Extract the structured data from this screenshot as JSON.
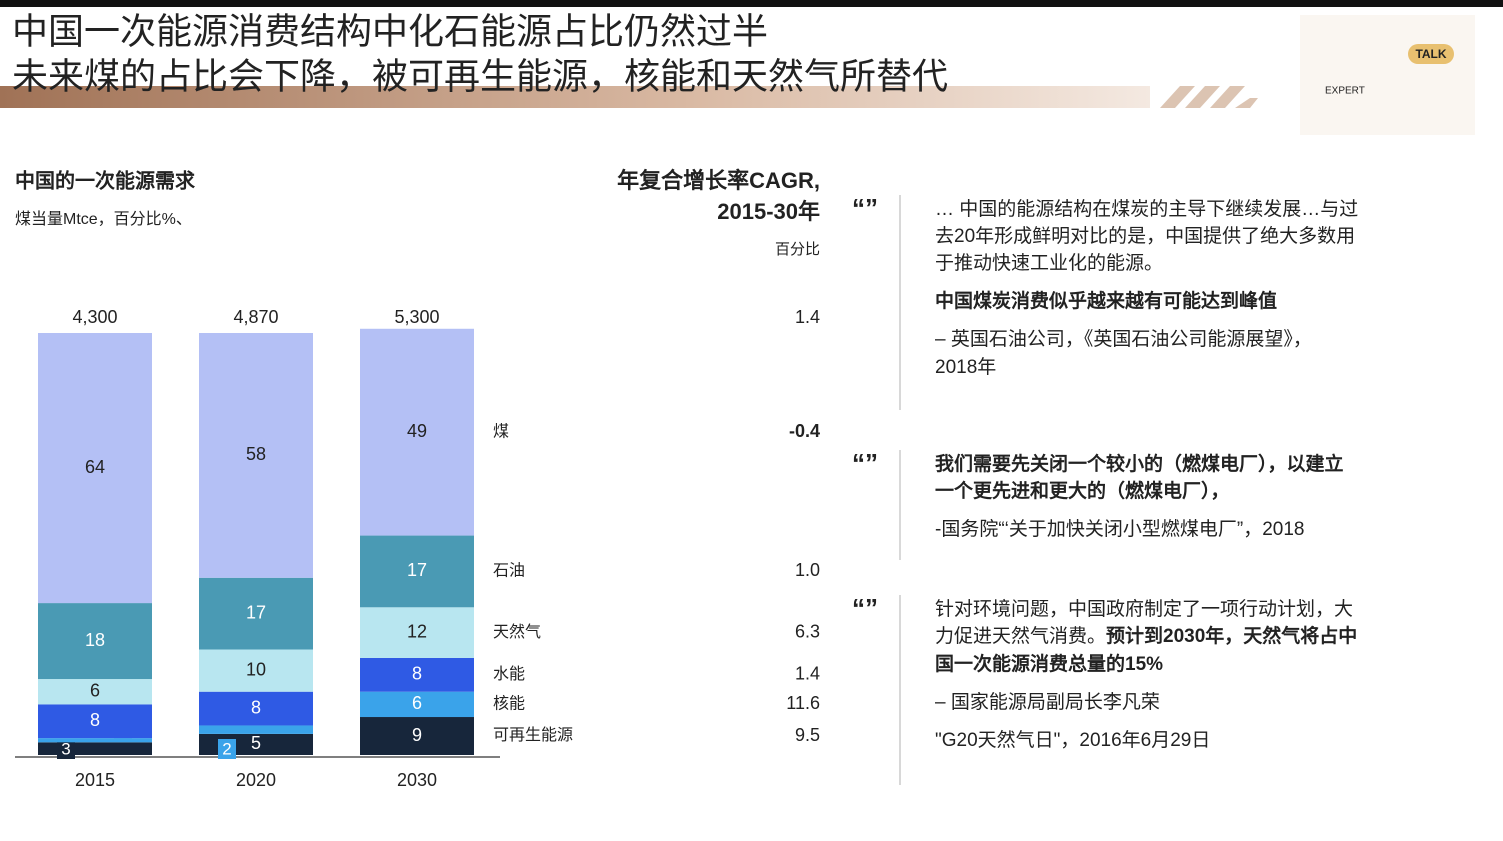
{
  "title": [
    "中国一次能源消费结构中化石能源占比仍然过半",
    "未来煤的占比会下降，被可再生能源，核能和天然气所替代"
  ],
  "logo": [
    "TALK",
    "EXPERT"
  ],
  "chart_data": {
    "type": "stacked-bar",
    "title": "中国的一次能源需求",
    "subtitle": "煤当量Mtce，百分比%、",
    "cagr_title": [
      "年复合增长率CAGR,",
      "2015-30年"
    ],
    "cagr_unit": "百分比",
    "categories": [
      "2015",
      "2020",
      "2030"
    ],
    "totals": {
      "values": [
        4300,
        4870,
        5300
      ],
      "value_labels": [
        "4,300",
        "4,870",
        "5,300"
      ],
      "cagr": 1.4
    },
    "series": [
      {
        "name": "可再生能源",
        "color": "#17263b",
        "values": [
          3,
          5,
          9
        ],
        "cagr": 9.5
      },
      {
        "name": "核能",
        "color": "#3aa3ea",
        "values": [
          1,
          2,
          6
        ],
        "cagr": 11.6
      },
      {
        "name": "水能",
        "color": "#2f5ae4",
        "values": [
          8,
          8,
          8
        ],
        "cagr": 1.4
      },
      {
        "name": "天然气",
        "color": "#b8e6f0",
        "values": [
          6,
          10,
          12
        ],
        "cagr": 6.3
      },
      {
        "name": "石油",
        "color": "#4a9ab4",
        "values": [
          18,
          17,
          17
        ],
        "cagr": 1.0,
        "cagr_label": "1.0"
      },
      {
        "name": "煤",
        "color": "#b4c0f5",
        "values": [
          64,
          58,
          49
        ],
        "cagr": -0.4
      }
    ]
  },
  "quotes": [
    {
      "lines": [
        [
          {
            "text": "… 中国的能源结构在煤炭的主导下继续发展…与过",
            "bold": false
          }
        ],
        [
          {
            "text": "去20年形成鲜明对比的是，中国提供了绝大多数用",
            "bold": false
          }
        ],
        [
          {
            "text": "于推动快速工业化的能源。",
            "bold": false
          }
        ],
        [
          {
            "text": "中国煤炭消费似乎越来越有可能达到峰值",
            "bold": true
          }
        ],
        [
          {
            "text": "– 英国石油公司，《英国石油公司能源展望》，",
            "bold": false
          }
        ],
        [
          {
            "text": "2018年",
            "bold": false
          }
        ]
      ]
    },
    {
      "lines": [
        [
          {
            "text": "我们需要先关闭一个较小的（燃煤电厂），以建立",
            "bold": true
          }
        ],
        [
          {
            "text": "一个更先进和更大的（燃煤电厂），",
            "bold": true
          }
        ],
        [
          {
            "text": "-国务院“‘关于加快关闭小型燃煤电厂”，2018",
            "bold": false
          }
        ]
      ]
    },
    {
      "lines": [
        [
          {
            "text": "针对环境问题，中国政府制定了一项行动计划，大",
            "bold": false
          }
        ],
        [
          {
            "text": "力促进天然气消费。",
            "bold": false
          },
          {
            "text": "预计到2030年，天然气将占中",
            "bold": true
          }
        ],
        [
          {
            "text": "国一次能源消费总量的15%",
            "bold": true
          }
        ],
        [
          {
            "text": "– 国家能源局副局长李凡荣",
            "bold": false
          }
        ],
        [
          {
            "text": "\"G20天然气日\"，2016年6月29日",
            "bold": false
          }
        ]
      ]
    }
  ]
}
